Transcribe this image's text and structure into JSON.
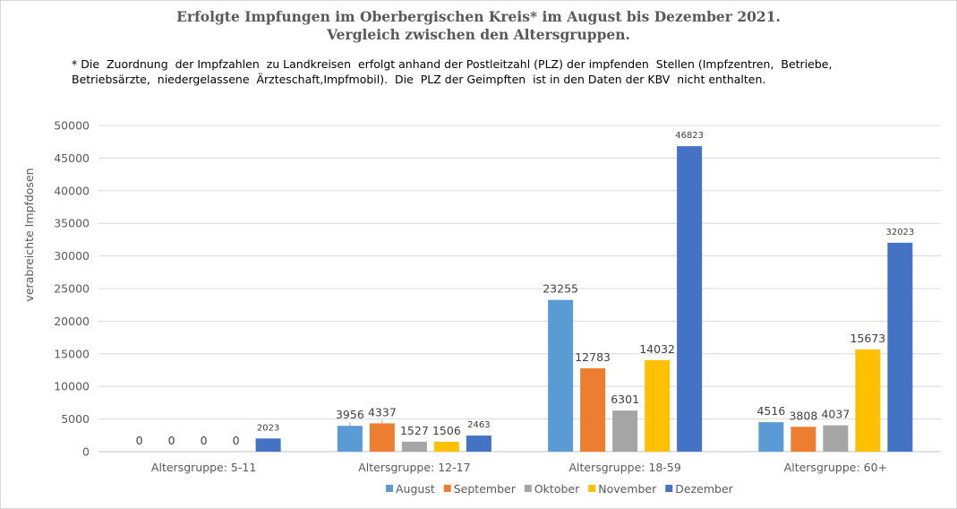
{
  "chart_data": {
    "type": "bar",
    "title_line1": "Erfolgte Impfungen im Oberbergischen Kreis* im August bis Dezember 2021.",
    "title_line2": "Vergleich  zwischen den Altersgruppen.",
    "footnote_line1": "* Die  Zuordnung  der Impfzahlen  zu Landkreisen  erfolgt anhand der Postleitzahl (PLZ) der impfenden  Stellen (Impfzentren,  Betriebe,",
    "footnote_line2": "Betriebsärzte,  niedergelassene  Ärzteschaft,Impfmobil).  Die  PLZ der Geimpften  ist in den Daten der KBV  nicht enthalten.",
    "ylabel": "verabreichte Impfdosen",
    "xlabel": "",
    "ylim": [
      0,
      50000
    ],
    "yticks": [
      0,
      5000,
      10000,
      15000,
      20000,
      25000,
      30000,
      35000,
      40000,
      45000,
      50000
    ],
    "grid": true,
    "legend_position": "bottom",
    "categories": [
      "Altersgruppe: 5-11",
      "Altersgruppe: 12-17",
      "Altersgruppe: 18-59",
      "Altersgruppe: 60+"
    ],
    "series": [
      {
        "name": "August",
        "color": "#5b9bd5",
        "values": [
          0,
          3956,
          23255,
          4516
        ]
      },
      {
        "name": "September",
        "color": "#ed7d31",
        "values": [
          0,
          4337,
          12783,
          3808
        ]
      },
      {
        "name": "Oktober",
        "color": "#a5a5a5",
        "values": [
          0,
          1527,
          6301,
          4037
        ]
      },
      {
        "name": "November",
        "color": "#ffc000",
        "values": [
          0,
          1506,
          14032,
          15673
        ]
      },
      {
        "name": "Dezember",
        "color": "#4472c4",
        "values": [
          2023,
          2463,
          46823,
          32023
        ]
      }
    ]
  }
}
